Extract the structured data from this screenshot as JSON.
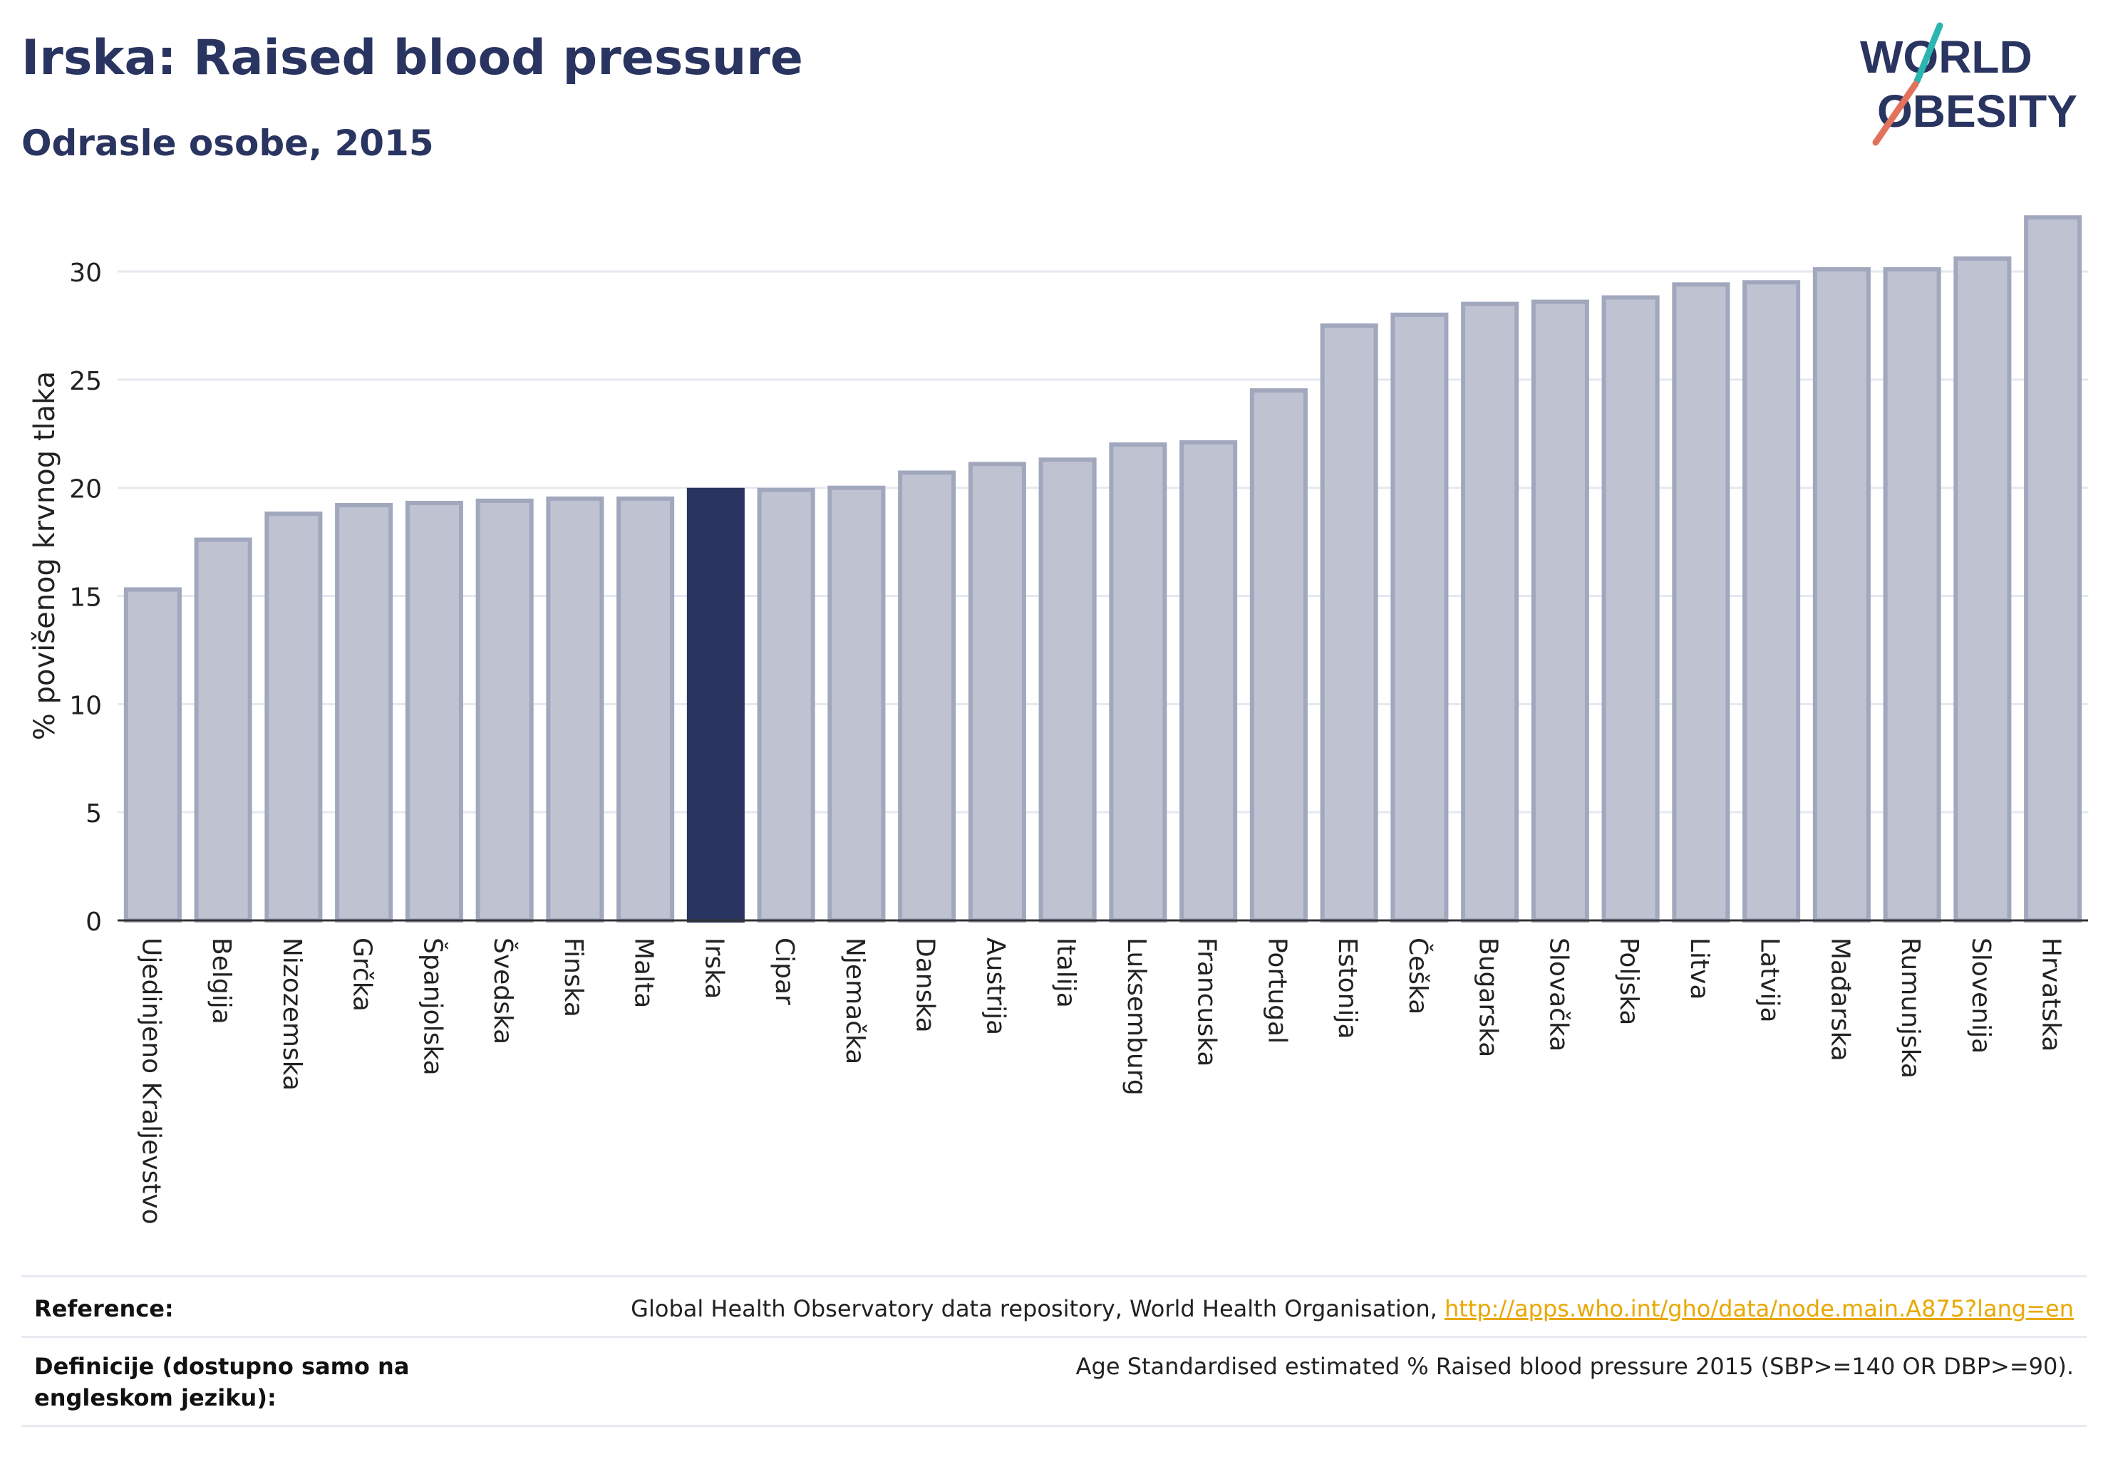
{
  "header": {
    "title": "Irska: Raised blood pressure",
    "subtitle": "Odrasle osobe, 2015"
  },
  "logo": {
    "line1": "WORLD",
    "line2": "OBESITY",
    "accent_colors": [
      "#2ab5b0",
      "#e2725b"
    ]
  },
  "colors": {
    "highlight": "#2a3460",
    "bar": "#bfc3d1",
    "bar_edge": "#a1a7bd",
    "grid": "#e6e8ef",
    "axis": "#333333"
  },
  "chart_data": {
    "type": "bar",
    "title": "Irska: Raised blood pressure",
    "subtitle": "Odrasle osobe, 2015",
    "xlabel": "",
    "ylabel": "% povišenog krvnog tlaka",
    "ylim": [
      0,
      33
    ],
    "yticks": [
      0,
      5,
      10,
      15,
      20,
      25,
      30
    ],
    "grid": true,
    "highlight": "Irska",
    "categories": [
      "Ujedinjeno Kraljevstvo",
      "Belgija",
      "Nizozemska",
      "Grčka",
      "Španjolska",
      "Švedska",
      "Finska",
      "Malta",
      "Irska",
      "Cipar",
      "Njemačka",
      "Danska",
      "Austrija",
      "Italija",
      "Luksemburg",
      "Francuska",
      "Portugal",
      "Estonija",
      "Češka",
      "Bugarska",
      "Slovačka",
      "Poljska",
      "Litva",
      "Latvija",
      "Mađarska",
      "Rumunjska",
      "Slovenija",
      "Hrvatska"
    ],
    "values": [
      15.3,
      17.6,
      18.8,
      19.2,
      19.3,
      19.4,
      19.5,
      19.5,
      19.9,
      19.9,
      20.0,
      20.7,
      21.1,
      21.3,
      22.0,
      22.1,
      24.5,
      27.5,
      28.0,
      28.5,
      28.6,
      28.8,
      29.4,
      29.5,
      30.1,
      30.1,
      30.6,
      32.5
    ]
  },
  "footer": {
    "reference_label": "Reference:",
    "reference_text": "Global Health Observatory data repository, World Health Organisation, ",
    "reference_link": "http://apps.who.int/gho/data/node.main.A875?lang=en",
    "definition_label": "Definicije (dostupno samo na engleskom jeziku):",
    "definition_text": "Age Standardised estimated % Raised blood pressure 2015 (SBP>=140 OR DBP>=90)."
  }
}
